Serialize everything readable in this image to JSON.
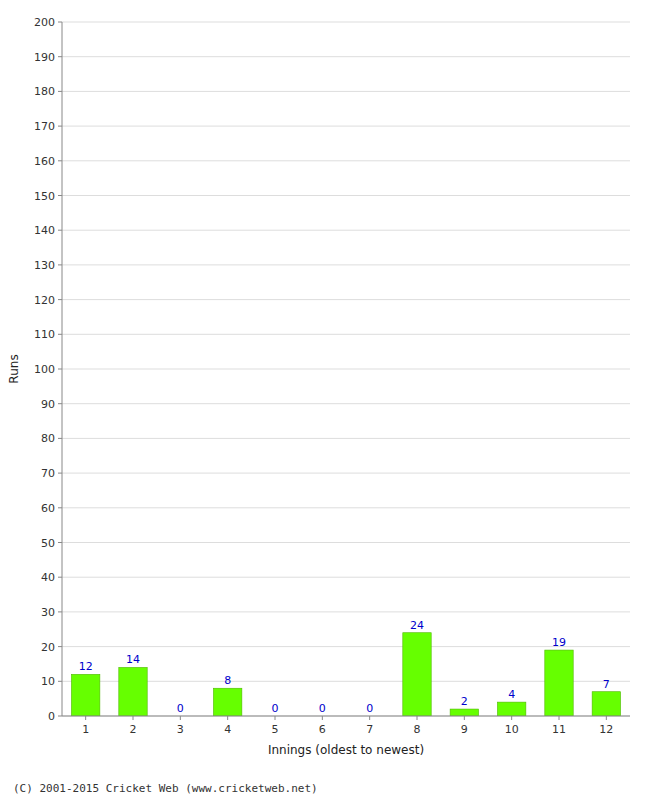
{
  "chart_data": {
    "type": "bar",
    "categories": [
      "1",
      "2",
      "3",
      "4",
      "5",
      "6",
      "7",
      "8",
      "9",
      "10",
      "11",
      "12"
    ],
    "values": [
      12,
      14,
      0,
      8,
      0,
      0,
      0,
      24,
      2,
      4,
      19,
      7
    ],
    "color": "#66ff00",
    "x_label": "Innings (oldest to newest)",
    "y_label": "Runs",
    "annotations": [
      "(C) 2001-2015 Cricket Web (www.cricketweb.net)"
    ],
    "ylim": [
      0,
      200
    ],
    "yticks": [
      0,
      10,
      20,
      30,
      40,
      50,
      60,
      70,
      80,
      90,
      100,
      110,
      120,
      130,
      140,
      150,
      160,
      170,
      180,
      190,
      200
    ],
    "grid": true,
    "data_labels": true
  }
}
